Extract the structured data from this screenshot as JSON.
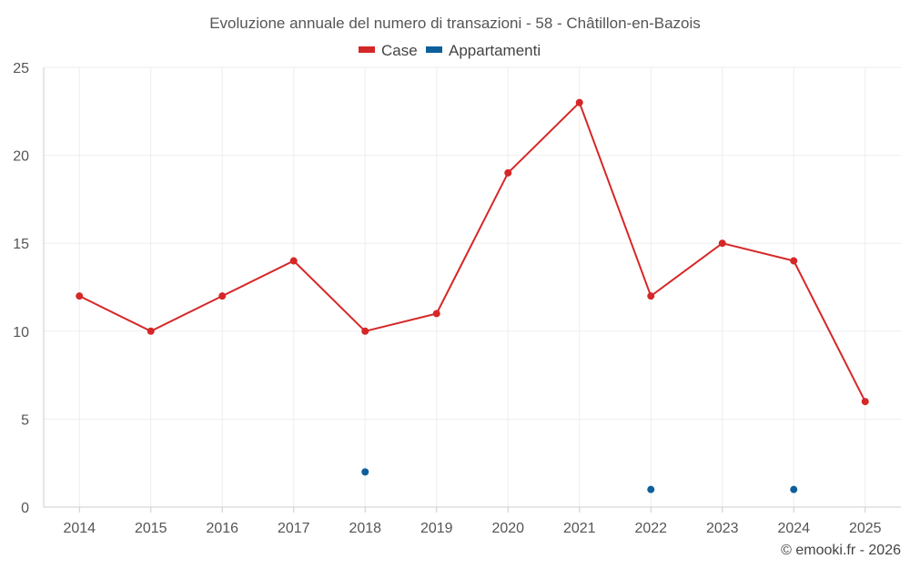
{
  "chart_data": {
    "type": "line",
    "title": "Evoluzione annuale del numero di transazioni - 58 - Châtillon-en-Bazois",
    "categories": [
      "2014",
      "2015",
      "2016",
      "2017",
      "2018",
      "2019",
      "2020",
      "2021",
      "2022",
      "2023",
      "2024",
      "2025"
    ],
    "series": [
      {
        "name": "Case",
        "color": "#d62728",
        "values": [
          12,
          10,
          12,
          14,
          10,
          11,
          19,
          23,
          12,
          15,
          14,
          6
        ]
      },
      {
        "name": "Appartamenti",
        "color": "#0d5f9b",
        "values": [
          null,
          null,
          null,
          null,
          2,
          null,
          null,
          null,
          1,
          null,
          1,
          null
        ]
      }
    ],
    "ylim": [
      0,
      25
    ],
    "yticks": [
      0,
      5,
      10,
      15,
      20,
      25
    ],
    "xlabel": "",
    "ylabel": "",
    "grid": true,
    "legend": "top-center"
  },
  "credit": "© emooki.fr - 2026"
}
